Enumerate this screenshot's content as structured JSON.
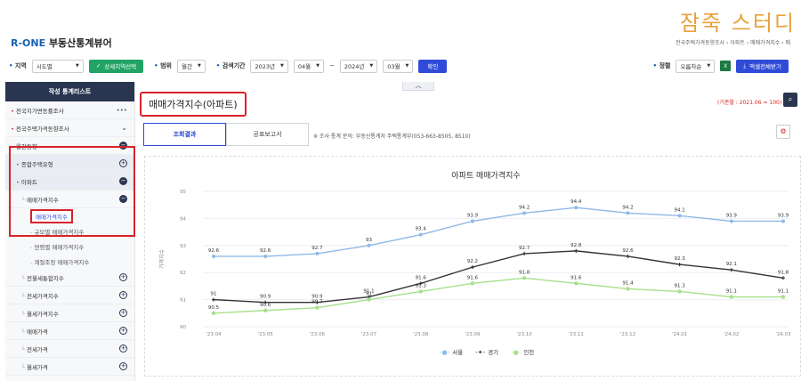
{
  "watermark": "잠죽 스터디",
  "app": {
    "logo_prefix": "R-ONE",
    "logo_rest": " 부동산통계뷰어",
    "breadcrumb": "전국주택가격동향조사 › 아파트 › 매매가격지수 › 매"
  },
  "filters": {
    "region_label": "지역",
    "region_value": "시도별",
    "detail_region_button": "상세지역선택",
    "scope_label": "범위",
    "scope_value": "월간",
    "period_label": "검색기간",
    "start_year": "2023년",
    "start_month": "04월",
    "tilde": "~",
    "end_year": "2024년",
    "end_month": "03월",
    "confirm_button": "확인",
    "sort_label": "정렬",
    "sort_value": "오름차순",
    "excel_icon": "X",
    "download_button": "액셀전체받기"
  },
  "sidebar": {
    "header": "작성 통계리스트",
    "items": [
      {
        "label": "전국지가변동률조사",
        "level": "l1",
        "icon": "dots"
      },
      {
        "label": "전국주택가격동향조사",
        "level": "l1",
        "icon": "chevron"
      },
      {
        "label": "월간동향",
        "level": "l1",
        "icon": "minus"
      },
      {
        "label": "종합주택유형",
        "level": "l2",
        "icon": "plus"
      },
      {
        "label": "아파트",
        "level": "l2",
        "icon": "minus"
      },
      {
        "label": "매매가격지수",
        "level": "l3",
        "icon": "minus"
      },
      {
        "label": "매매가격지수",
        "level": "l4 active",
        "icon": "none"
      },
      {
        "label": "규모별 매매가격지수",
        "level": "l4",
        "icon": "none"
      },
      {
        "label": "연령별 매매가격지수",
        "level": "l4",
        "icon": "none"
      },
      {
        "label": "계절조정 매매가격지수",
        "level": "l4",
        "icon": "none"
      },
      {
        "label": "전월세통합지수",
        "level": "l3",
        "icon": "plus"
      },
      {
        "label": "전세가격지수",
        "level": "l3",
        "icon": "plus"
      },
      {
        "label": "월세가격지수",
        "level": "l3",
        "icon": "plus"
      },
      {
        "label": "매매가격",
        "level": "l3",
        "icon": "plus"
      },
      {
        "label": "전세가격",
        "level": "l3",
        "icon": "plus"
      },
      {
        "label": "월세가격",
        "level": "l3",
        "icon": "plus"
      }
    ]
  },
  "main": {
    "title": "매매가격지수(아파트)",
    "base_month": "(기준월 : 2021.06 = 100)",
    "tabs": [
      "조회결과",
      "공표보고서"
    ],
    "note": "※ 조사·통계 문의: 부동산통계처 주택통계부(053-663-8505, 8510)"
  },
  "chart_data": {
    "type": "line",
    "title": "아파트 매매가격지수",
    "ylabel": "가격지수",
    "xlabel": "",
    "ylim": [
      90,
      95
    ],
    "yticks": [
      90,
      91,
      92,
      93,
      94,
      95
    ],
    "categories": [
      "'23.04",
      "'23.05",
      "'23.06",
      "'23.07",
      "'23.08",
      "'23.09",
      "'23.10",
      "'23.11",
      "'23.12",
      "'24.01",
      "'24.02",
      "'24.03"
    ],
    "series": [
      {
        "name": "서울",
        "color": "#8fb9e6",
        "marker": "diamond",
        "values": [
          92.6,
          92.6,
          92.7,
          93,
          93.4,
          93.9,
          94.2,
          94.4,
          94.2,
          94.1,
          93.9,
          93.9
        ]
      },
      {
        "name": "경기",
        "color": "#333333",
        "marker": "cross",
        "values": [
          91,
          90.9,
          90.9,
          91.1,
          91.6,
          92.2,
          92.7,
          92.8,
          92.6,
          92.3,
          92.1,
          91.8
        ]
      },
      {
        "name": "인천",
        "color": "#a6e08a",
        "marker": "circle",
        "values": [
          90.5,
          90.6,
          90.7,
          91,
          91.3,
          91.6,
          91.8,
          91.6,
          91.4,
          91.3,
          91.1,
          91.1
        ]
      }
    ],
    "grid": true,
    "legend": "bottom-center"
  }
}
